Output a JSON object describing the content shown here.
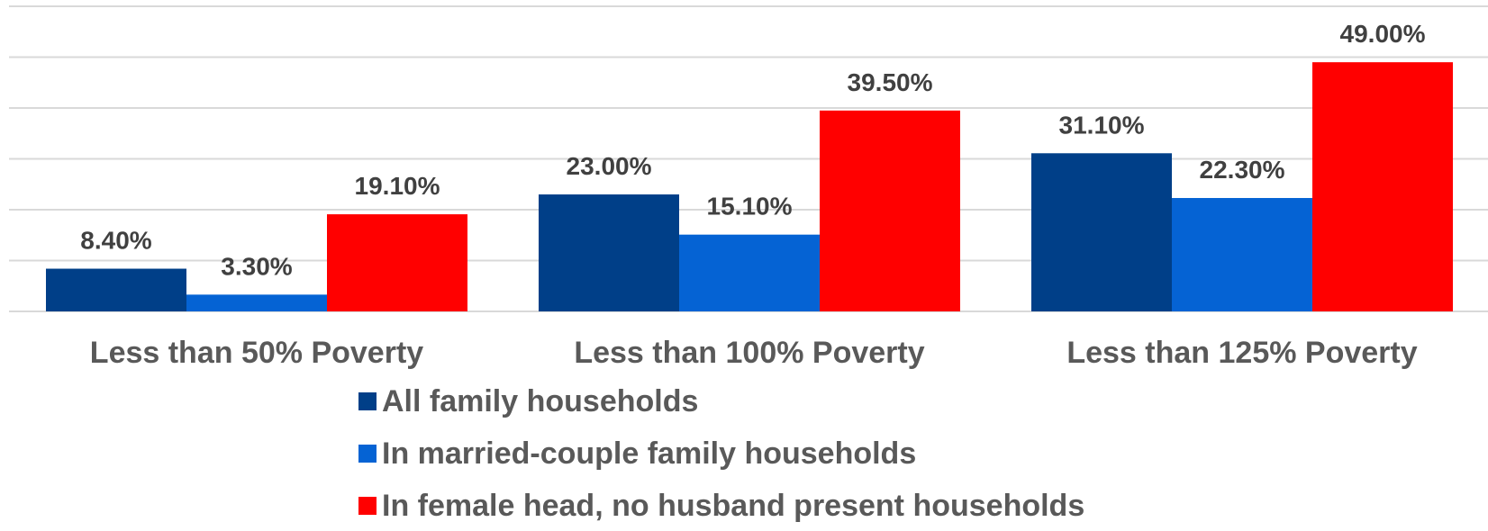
{
  "chart_data": {
    "type": "bar",
    "categories": [
      "Less than 50% Poverty",
      "Less than 100% Poverty",
      "Less than 125% Poverty"
    ],
    "series": [
      {
        "name": "All family households",
        "values": [
          8.4,
          23.0,
          31.1
        ],
        "labels": [
          "8.40%",
          "23.00%",
          "31.10%"
        ],
        "color": "#003f88"
      },
      {
        "name": "In married-couple family households",
        "values": [
          3.3,
          15.1,
          22.3
        ],
        "labels": [
          "3.30%",
          "15.10%",
          "22.30%"
        ],
        "color": "#0563d4"
      },
      {
        "name": "In female head, no husband present households",
        "values": [
          19.1,
          39.5,
          49.0
        ],
        "labels": [
          "19.10%",
          "39.50%",
          "49.00%"
        ],
        "color": "#ff0000"
      }
    ],
    "ylim": [
      0,
      60
    ],
    "grid": true,
    "legend_position": "bottom"
  }
}
